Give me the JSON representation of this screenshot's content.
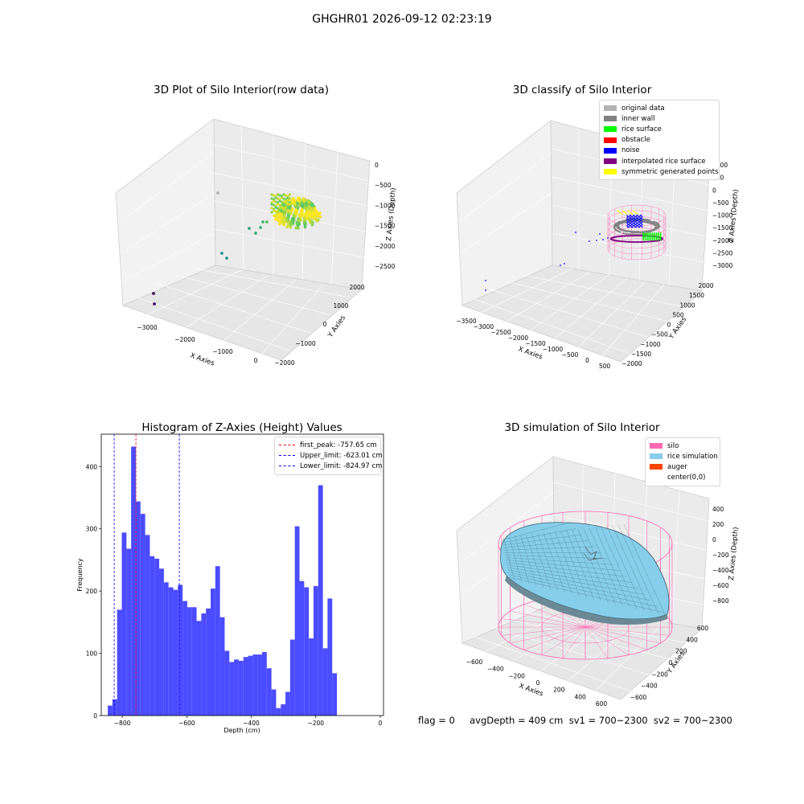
{
  "page": {
    "title": "GHGHR01 2026-09-12 02:23:19"
  },
  "chart_data": [
    {
      "type": "scatter",
      "subtype": "3d",
      "title": "3D Plot of Silo Interior(row data)",
      "xlabel": "X Axies",
      "ylabel": "Y Axies",
      "zlabel": "Z Axies (Depth)",
      "x_ticks": [
        "−3000",
        "−2000",
        "−1000",
        "0"
      ],
      "y_ticks": [
        "−2000",
        "−1000",
        "0",
        "1000",
        "2000"
      ],
      "z_ticks": [
        "0",
        "−500",
        "−1000",
        "−1500",
        "−2000",
        "−2500"
      ],
      "colormap": "viridis"
    },
    {
      "type": "scatter",
      "subtype": "3d",
      "title": "3D classify of Silo Interior",
      "xlabel": "X Axies",
      "ylabel": "Y Axies",
      "zlabel": "Z Axies (Depth)",
      "x_ticks": [
        "−3500",
        "−3000",
        "−2500",
        "−2000",
        "−1500",
        "−1000",
        "−500",
        "0",
        "500"
      ],
      "y_ticks": [
        "−2000",
        "−1500",
        "−1000",
        "−500",
        "0",
        "500",
        "1000",
        "1500",
        "2000"
      ],
      "z_ticks": [
        "1000",
        "500",
        "0",
        "−500",
        "−1000",
        "−1500",
        "−2000",
        "−2500",
        "−3000"
      ],
      "legend_position": "top-right",
      "legend": [
        {
          "label": "original data",
          "color": "#b3b3b3"
        },
        {
          "label": "inner wall",
          "color": "#808080"
        },
        {
          "label": "rice surface",
          "color": "#00ff00"
        },
        {
          "label": "obstacle",
          "color": "#ff0000"
        },
        {
          "label": "noise",
          "color": "#0000ff"
        },
        {
          "label": "interpolated rice surface",
          "color": "#800080"
        },
        {
          "label": "symmetric generated points",
          "color": "#ffff00"
        }
      ]
    },
    {
      "type": "bar",
      "subtype": "histogram",
      "title": "Histogram of Z-Axies (Height) Values",
      "xlabel": "Depth (cm)",
      "ylabel": "Frequency",
      "xlim": [
        -865,
        10
      ],
      "ylim": [
        0,
        452
      ],
      "x_ticks": [
        -800,
        -600,
        -400,
        -200,
        0
      ],
      "y_ticks": [
        0,
        100,
        200,
        300,
        400
      ],
      "bar_color": "#4b4bff",
      "bin_start": -845,
      "bin_width": 14.5,
      "values": [
        16,
        26,
        170,
        294,
        268,
        432,
        344,
        324,
        290,
        256,
        252,
        236,
        214,
        206,
        202,
        210,
        184,
        174,
        174,
        152,
        164,
        172,
        204,
        240,
        158,
        104,
        86,
        90,
        88,
        94,
        96,
        98,
        98,
        102,
        76,
        42,
        12,
        18,
        38,
        122,
        304,
        216,
        206,
        124,
        208,
        370,
        108,
        188,
        68
      ],
      "lines": [
        {
          "label": "first_peak: -757.65 cm",
          "x": -757.65,
          "color": "#ff0000"
        },
        {
          "label": "Upper_limit: -623.01 cm",
          "x": -623.01,
          "color": "#0000ff"
        },
        {
          "label": "Lower_limit: -824.97 cm",
          "x": -824.97,
          "color": "#0000ff"
        }
      ],
      "legend_position": "top-right"
    },
    {
      "type": "surface",
      "subtype": "3d",
      "title": "3D simulation of Silo Interior",
      "xlabel": "X Axies",
      "ylabel": "Y Axies",
      "zlabel": "Z Axies (Depth)",
      "x_ticks": [
        "−600",
        "−400",
        "−200",
        "0",
        "200",
        "400",
        "600"
      ],
      "y_ticks": [
        "−600",
        "−400",
        "−200",
        "0",
        "200",
        "400",
        "600"
      ],
      "z_ticks": [
        "400",
        "200",
        "0",
        "−200",
        "−400",
        "−600",
        "−800"
      ],
      "legend_position": "top-right",
      "legend": [
        {
          "label": "silo",
          "color": "#ff69b4"
        },
        {
          "label": "rice simulation",
          "color": "#87ceeb"
        },
        {
          "label": "auger",
          "color": "#ff4500"
        },
        {
          "label": "center(0,0)",
          "color": "#ffffff"
        }
      ]
    }
  ],
  "footer": {
    "text": "flag = 0     avgDepth = 409 cm  sv1 = 700~2300  sv2 = 700~2300"
  }
}
